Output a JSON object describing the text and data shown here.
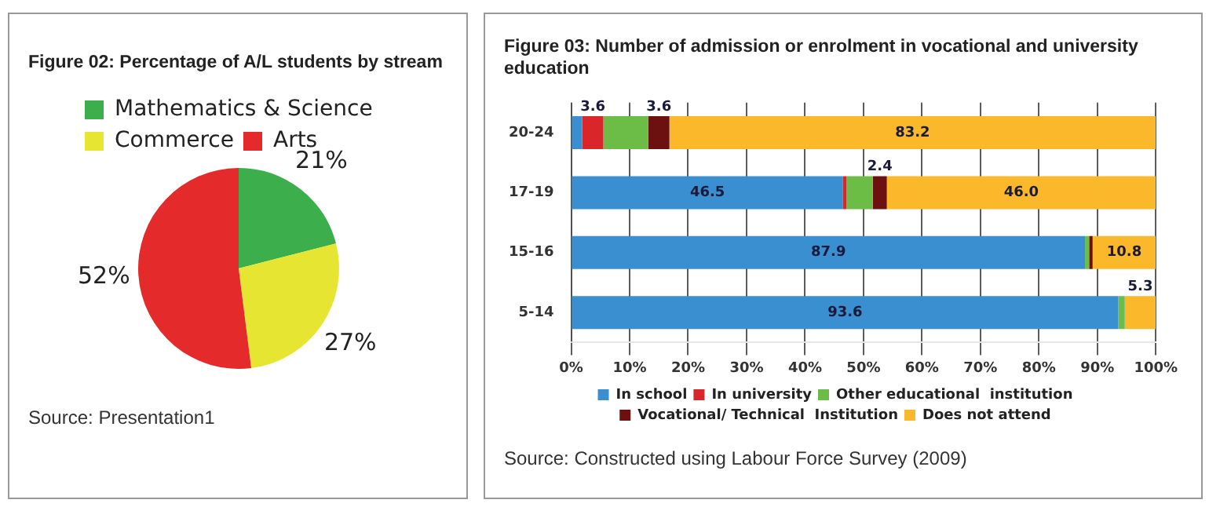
{
  "chart_data": [
    {
      "type": "pie",
      "title": "Figure 02: Percentage of A/L students by stream",
      "categories": [
        "Mathematics & Science",
        "Commerce",
        "Arts"
      ],
      "values": [
        21,
        27,
        52
      ],
      "colors": [
        "#3cae4b",
        "#e6e632",
        "#e42a2a"
      ],
      "value_labels": [
        "21%",
        "27%",
        "52%"
      ],
      "legend": "top left",
      "annotations": [
        "Source: Presentation1"
      ]
    },
    {
      "type": "bar",
      "orientation": "horizontal",
      "stacked": true,
      "title": "Figure 03: Number of admission or enrolment in vocational and university education",
      "categories": [
        "20-24",
        "17-19",
        "15-16",
        "5-14"
      ],
      "series": [
        {
          "name": "In school",
          "color": "#3a8fd1",
          "values": [
            1.9,
            46.5,
            87.9,
            93.6
          ],
          "value_labels": [
            null,
            "46.5",
            "87.9",
            "93.6"
          ]
        },
        {
          "name": "In university",
          "color": "#d9262b",
          "values": [
            3.6,
            0.6,
            0,
            0
          ],
          "value_labels": [
            "3.6",
            null,
            null,
            null
          ]
        },
        {
          "name": "Other educational  institution",
          "color": "#6bbd45",
          "values": [
            7.7,
            4.5,
            0.7,
            1.1
          ],
          "value_labels": [
            null,
            null,
            null,
            null
          ]
        },
        {
          "name": "Vocational/ Technical  Institution",
          "color": "#6d1010",
          "values": [
            3.6,
            2.4,
            0.6,
            0
          ],
          "value_labels": [
            "3.6",
            "2.4",
            null,
            null
          ]
        },
        {
          "name": "Does not attend",
          "color": "#fbb82a",
          "values": [
            83.2,
            46.0,
            10.8,
            5.3
          ],
          "value_labels": [
            "83.2",
            "46.0",
            "10.8",
            "5.3"
          ]
        }
      ],
      "xlim": [
        0,
        100
      ],
      "xticks": [
        {
          "value": 0,
          "label": "0%"
        },
        {
          "value": 10,
          "label": "10%"
        },
        {
          "value": 20,
          "label": "20%"
        },
        {
          "value": 30,
          "label": "30%"
        },
        {
          "value": 40,
          "label": "40%"
        },
        {
          "value": 50,
          "label": "50%"
        },
        {
          "value": 60,
          "label": "60%"
        },
        {
          "value": 70,
          "label": "70%"
        },
        {
          "value": 80,
          "label": "80%"
        },
        {
          "value": 90,
          "label": "90%"
        },
        {
          "value": 100,
          "label": "100%"
        }
      ],
      "grid": "x",
      "legend": "bottom",
      "annotations": [
        "Source: Constructed using Labour Force Survey (2009)"
      ]
    }
  ]
}
